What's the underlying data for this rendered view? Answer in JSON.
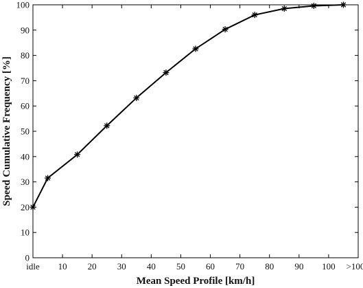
{
  "chart_data": {
    "type": "line",
    "title": "",
    "xlabel": "Mean Speed Profile [km/h]",
    "ylabel": "Speed Cumulative Frequency [%]",
    "xlim": [
      0,
      110
    ],
    "ylim": [
      0,
      100
    ],
    "x_ticks": [
      {
        "value": 0,
        "label": "idle"
      },
      {
        "value": 10,
        "label": "10"
      },
      {
        "value": 20,
        "label": "20"
      },
      {
        "value": 30,
        "label": "30"
      },
      {
        "value": 40,
        "label": "40"
      },
      {
        "value": 50,
        "label": "50"
      },
      {
        "value": 60,
        "label": "60"
      },
      {
        "value": 70,
        "label": "70"
      },
      {
        "value": 80,
        "label": "80"
      },
      {
        "value": 90,
        "label": "90"
      },
      {
        "value": 100,
        "label": "100"
      },
      {
        "value": 110,
        "label": ">100"
      }
    ],
    "y_ticks": [
      0,
      10,
      20,
      30,
      40,
      50,
      60,
      70,
      80,
      90,
      100
    ],
    "grid": false,
    "marker": "asterisk",
    "line_color": "#000000",
    "series": [
      {
        "x": [
          0,
          5,
          15,
          25,
          35,
          45,
          55,
          65,
          75,
          85,
          95,
          105
        ],
        "values": [
          20.0,
          31.5,
          40.8,
          52.2,
          63.2,
          73.2,
          82.6,
          90.3,
          96.0,
          98.5,
          99.6,
          100.0
        ]
      }
    ]
  }
}
